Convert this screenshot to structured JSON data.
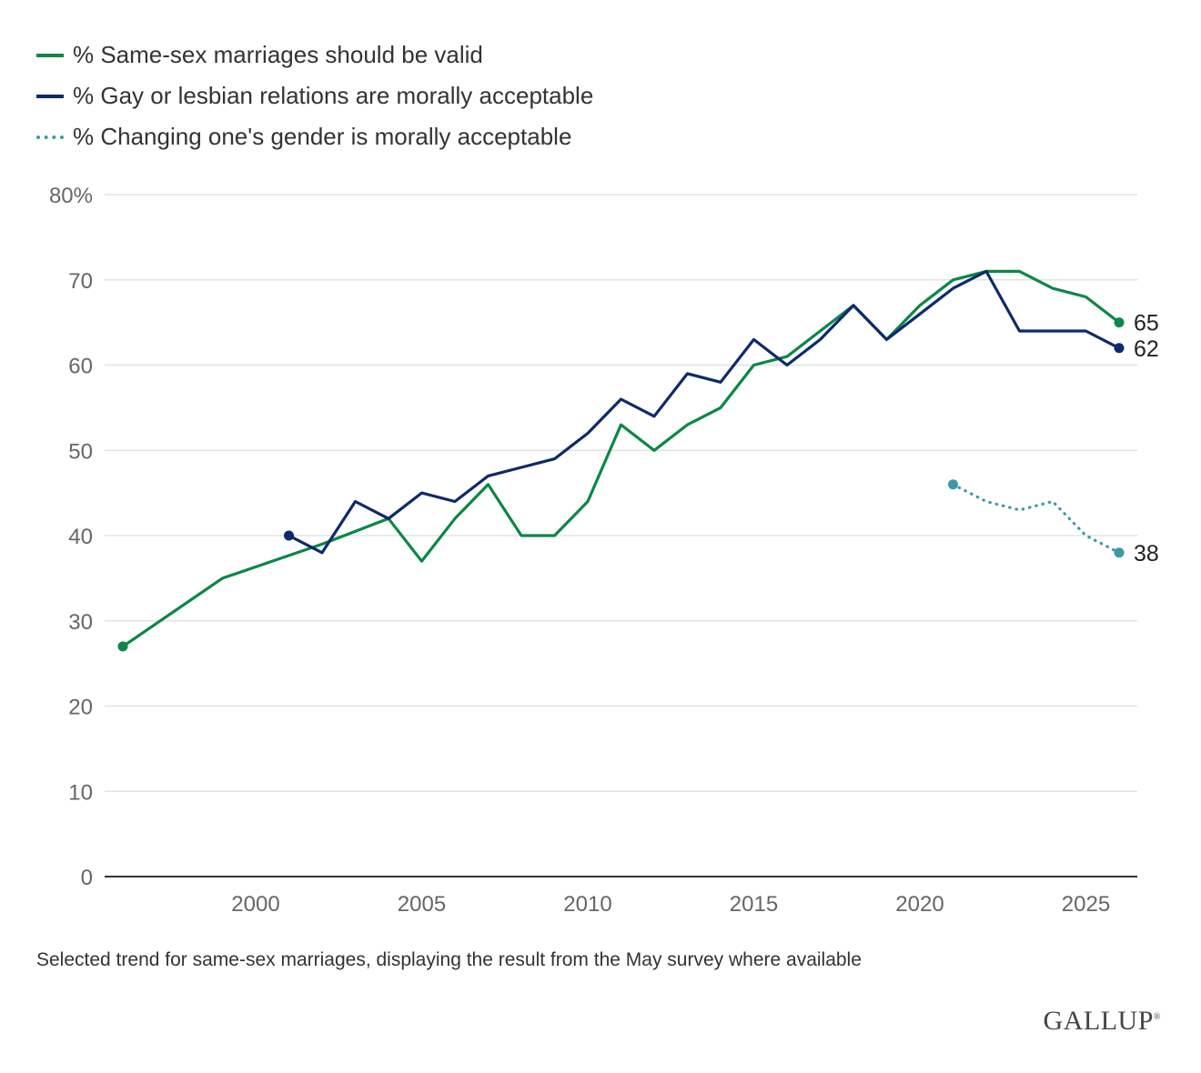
{
  "legend": [
    {
      "label": "% Same-sex marriages should be valid",
      "color": "#0b8747",
      "style": "solid"
    },
    {
      "label": "% Gay or lesbian relations are morally acceptable",
      "color": "#0d2a6b",
      "style": "solid"
    },
    {
      "label": "% Changing one's gender is morally acceptable",
      "color": "#3a9aa6",
      "style": "dotted"
    }
  ],
  "note": "Selected trend for same-sex marriages, displaying the result from the May survey where available",
  "logo": "GALLUP",
  "chart_data": {
    "type": "line",
    "xlim": [
      1996,
      2026
    ],
    "ylim": [
      0,
      80
    ],
    "yticks": [
      {
        "value": 0,
        "label": "0"
      },
      {
        "value": 10,
        "label": "10"
      },
      {
        "value": 20,
        "label": "20"
      },
      {
        "value": 30,
        "label": "30"
      },
      {
        "value": 40,
        "label": "40"
      },
      {
        "value": 50,
        "label": "50"
      },
      {
        "value": 60,
        "label": "60"
      },
      {
        "value": 70,
        "label": "70"
      },
      {
        "value": 80,
        "label": "80%"
      }
    ],
    "xticks": [
      {
        "value": 2000,
        "label": "2000"
      },
      {
        "value": 2005,
        "label": "2005"
      },
      {
        "value": 2010,
        "label": "2010"
      },
      {
        "value": 2015,
        "label": "2015"
      },
      {
        "value": 2020,
        "label": "2020"
      },
      {
        "value": 2025,
        "label": "2025"
      }
    ],
    "grid": true,
    "legend_position": "top-left",
    "series": [
      {
        "color": "#0b8747",
        "style": "solid",
        "end_label": "65",
        "points": [
          [
            1996,
            27
          ],
          [
            1999,
            35
          ],
          [
            2002,
            39
          ],
          [
            2004,
            42
          ],
          [
            2005,
            37
          ],
          [
            2006,
            42
          ],
          [
            2007,
            46
          ],
          [
            2008,
            40
          ],
          [
            2009,
            40
          ],
          [
            2010,
            44
          ],
          [
            2011,
            53
          ],
          [
            2012,
            50
          ],
          [
            2013,
            53
          ],
          [
            2014,
            55
          ],
          [
            2015,
            60
          ],
          [
            2016,
            61
          ],
          [
            2017,
            64
          ],
          [
            2018,
            67
          ],
          [
            2019,
            63
          ],
          [
            2020,
            67
          ],
          [
            2021,
            70
          ],
          [
            2022,
            71
          ],
          [
            2023,
            71
          ],
          [
            2024,
            69
          ],
          [
            2025,
            68
          ],
          [
            2026,
            65
          ]
        ]
      },
      {
        "color": "#0d2a6b",
        "style": "solid",
        "end_label": "62",
        "points": [
          [
            2001,
            40
          ],
          [
            2002,
            38
          ],
          [
            2003,
            44
          ],
          [
            2004,
            42
          ],
          [
            2005,
            45
          ],
          [
            2006,
            44
          ],
          [
            2007,
            47
          ],
          [
            2008,
            48
          ],
          [
            2009,
            49
          ],
          [
            2010,
            52
          ],
          [
            2011,
            56
          ],
          [
            2012,
            54
          ],
          [
            2013,
            59
          ],
          [
            2014,
            58
          ],
          [
            2015,
            63
          ],
          [
            2016,
            60
          ],
          [
            2017,
            63
          ],
          [
            2018,
            67
          ],
          [
            2019,
            63
          ],
          [
            2020,
            66
          ],
          [
            2021,
            69
          ],
          [
            2022,
            71
          ],
          [
            2023,
            64
          ],
          [
            2024,
            64
          ],
          [
            2025,
            64
          ],
          [
            2026,
            62
          ]
        ]
      },
      {
        "color": "#3a9aa6",
        "style": "dotted",
        "end_label": "38",
        "points": [
          [
            2021,
            46
          ],
          [
            2022,
            44
          ],
          [
            2023,
            43
          ],
          [
            2024,
            44
          ],
          [
            2025,
            40
          ],
          [
            2026,
            38
          ]
        ]
      }
    ]
  }
}
